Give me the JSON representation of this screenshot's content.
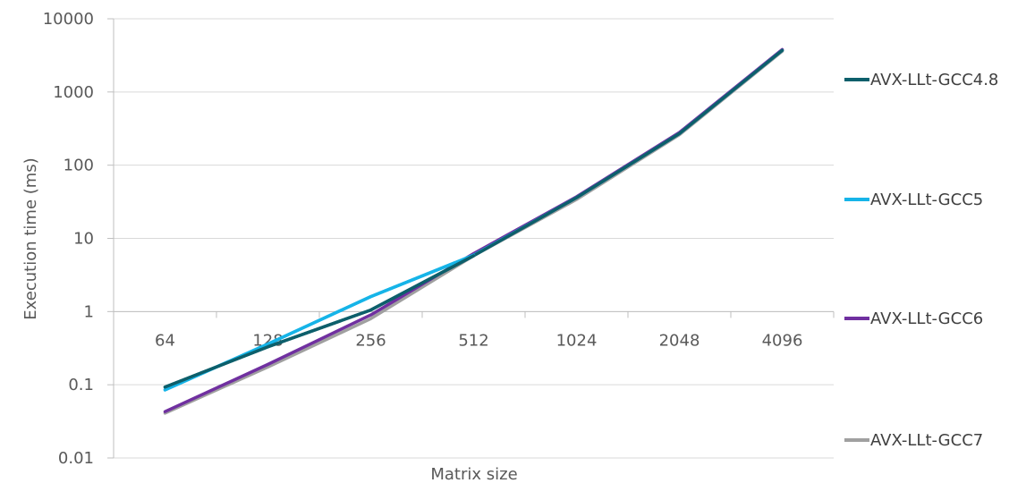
{
  "chart_data": {
    "type": "line",
    "title": "",
    "xlabel": "Matrix size",
    "ylabel": "Execution time (ms)",
    "categories": [
      "64",
      "128",
      "256",
      "512",
      "1024",
      "2048",
      "4096"
    ],
    "y_scale": "log",
    "ylim": [
      0.01,
      10000
    ],
    "y_ticks": [
      "0.01",
      "0.1",
      "1",
      "10",
      "100",
      "1000",
      "10000"
    ],
    "x_axis_crosses_at": 1,
    "grid": "horizontal",
    "legend_position": "right",
    "series": [
      {
        "name": "AVX-LLt-GCC4.8",
        "color": "#0d5f6b",
        "values": [
          0.093,
          0.33,
          1.05,
          5.8,
          36,
          270,
          3700
        ]
      },
      {
        "name": "AVX-LLt-GCC5",
        "color": "#16b4e8",
        "values": [
          0.085,
          0.36,
          1.6,
          5.9,
          36,
          270,
          3700
        ]
      },
      {
        "name": "AVX-LLt-GCC6",
        "color": "#7030a0",
        "values": [
          0.043,
          0.19,
          0.9,
          6.2,
          37,
          280,
          3800
        ]
      },
      {
        "name": "AVX-LLt-GCC7",
        "color": "#a0a0a0",
        "values": [
          0.041,
          0.175,
          0.8,
          5.8,
          34,
          260,
          3600
        ]
      }
    ]
  }
}
